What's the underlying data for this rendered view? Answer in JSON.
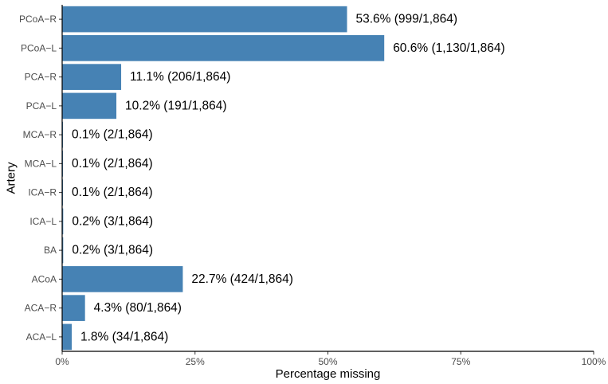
{
  "chart_data": {
    "type": "bar",
    "orientation": "horizontal",
    "xlabel": "Percentage missing",
    "ylabel": "Artery",
    "xlim": [
      0,
      100
    ],
    "x_ticks": [
      0,
      25,
      50,
      75,
      100
    ],
    "x_tick_labels": [
      "0%",
      "25%",
      "50%",
      "75%",
      "100%"
    ],
    "grid": false,
    "bar_color": "#4682B4",
    "categories": [
      "PCoA−R",
      "PCoA−L",
      "PCA−R",
      "PCA−L",
      "MCA−R",
      "MCA−L",
      "ICA−R",
      "ICA−L",
      "BA",
      "ACoA",
      "ACA−R",
      "ACA−L"
    ],
    "values": [
      53.6,
      60.6,
      11.1,
      10.2,
      0.1,
      0.1,
      0.1,
      0.2,
      0.2,
      22.7,
      4.3,
      1.8
    ],
    "data_labels": [
      "53.6% (999/1,864)",
      "60.6% (1,130/1,864)",
      "11.1% (206/1,864)",
      "10.2% (191/1,864)",
      "0.1% (2/1,864)",
      "0.1% (2/1,864)",
      "0.1% (2/1,864)",
      "0.2% (3/1,864)",
      "0.2% (3/1,864)",
      "22.7% (424/1,864)",
      "4.3% (80/1,864)",
      "1.8% (34/1,864)"
    ]
  }
}
